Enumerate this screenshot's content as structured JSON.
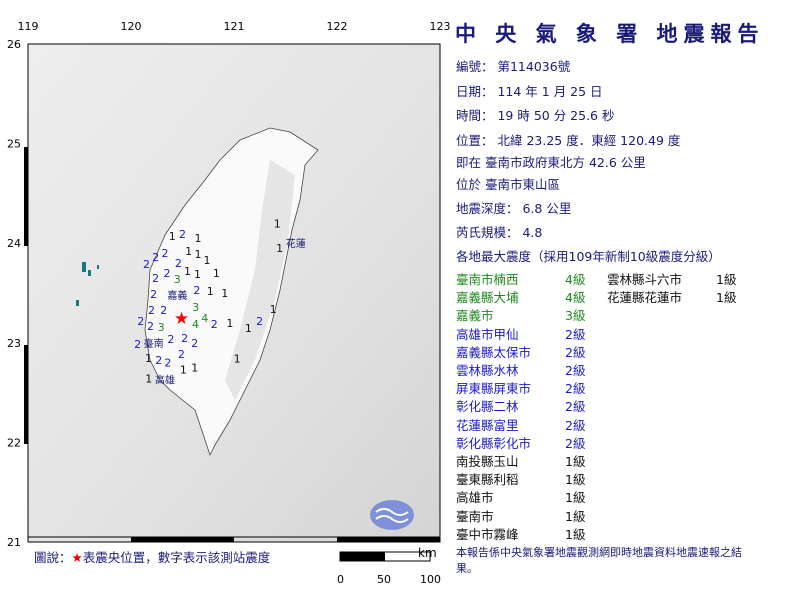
{
  "title": "中 央 氣 象 署 地震報告",
  "report": {
    "number": "編號： 第114036號",
    "date": "日期： 114 年 1 月 25 日",
    "time": "時間： 19 時 50 分 25.6 秒",
    "location": "位置： 北緯 23.25 度．東經 120.49 度",
    "relative": "即在 臺南市政府東北方 42.6 公里",
    "area": "位於 臺南市東山區",
    "depth": "地震深度： 6.8 公里",
    "magnitude": "芮氏規模： 4.8",
    "intensity_header": "各地最大震度（採用109年新制10級震度分級）"
  },
  "intensities_col1": [
    {
      "place": "臺南市楠西",
      "level": "4級",
      "color": "#1f8a1f"
    },
    {
      "place": "嘉義縣大埔",
      "level": "4級",
      "color": "#1f8a1f"
    },
    {
      "place": "嘉義市",
      "level": "3級",
      "color": "#1f8a1f"
    },
    {
      "place": "高雄市甲仙",
      "level": "2級",
      "color": "#1a1ad0"
    },
    {
      "place": "嘉義縣太保市",
      "level": "2級",
      "color": "#1a1ad0"
    },
    {
      "place": "雲林縣水林",
      "level": "2級",
      "color": "#1a1ad0"
    },
    {
      "place": "屏東縣屏東市",
      "level": "2級",
      "color": "#1a1ad0"
    },
    {
      "place": "彰化縣二林",
      "level": "2級",
      "color": "#1a1ad0"
    },
    {
      "place": "花蓮縣富里",
      "level": "2級",
      "color": "#1a1ad0"
    },
    {
      "place": "彰化縣彰化市",
      "level": "2級",
      "color": "#1a1ad0"
    },
    {
      "place": "南投縣玉山",
      "level": "1級",
      "color": "#111111"
    },
    {
      "place": "臺東縣利稻",
      "level": "1級",
      "color": "#111111"
    },
    {
      "place": "高雄市",
      "level": "1級",
      "color": "#111111"
    },
    {
      "place": "臺南市",
      "level": "1級",
      "color": "#111111"
    },
    {
      "place": "臺中市霧峰",
      "level": "1級",
      "color": "#111111"
    }
  ],
  "intensities_col2": [
    {
      "place": "雲林縣斗六市",
      "level": "1級",
      "color": "#111111"
    },
    {
      "place": "花蓮縣花蓮市",
      "level": "1級",
      "color": "#111111"
    }
  ],
  "note": "本報告係中央氣象署地震觀測網即時地震資料地震速報之結果。",
  "legend": {
    "prefix": "圖說：",
    "star": "★",
    "text": "表震央位置，數字表示該測站震度"
  },
  "scale": {
    "unit": "km",
    "labels": [
      "0",
      "50",
      "100"
    ]
  },
  "map": {
    "lon_ticks": [
      "119",
      "120",
      "121",
      "122",
      "123"
    ],
    "lat_ticks": [
      "26",
      "25",
      "24",
      "23",
      "22",
      "21"
    ],
    "epicenter": [
      120.49,
      23.25
    ],
    "colors": {
      "1": "#111111",
      "2": "#1a1ad0",
      "3": "#1f8a1f",
      "4": "#1f8a1f",
      "epicenter": "#ff0000"
    },
    "cities": [
      {
        "name": "嘉義",
        "lon": 120.45,
        "lat": 23.48
      },
      {
        "name": "臺南",
        "lon": 120.22,
        "lat": 23.0
      },
      {
        "name": "高雄",
        "lon": 120.33,
        "lat": 22.63
      },
      {
        "name": "花蓮",
        "lon": 121.6,
        "lat": 24.0
      }
    ],
    "stations": [
      [
        120.4,
        24.08,
        "1"
      ],
      [
        120.5,
        24.1,
        "2"
      ],
      [
        120.65,
        24.06,
        "1"
      ],
      [
        120.54,
        23.98,
        "1"
      ],
      [
        120.33,
        23.91,
        "2"
      ],
      [
        120.25,
        23.9,
        "2"
      ],
      [
        120.65,
        23.9,
        "1"
      ],
      [
        120.67,
        23.84,
        "1"
      ],
      [
        120.18,
        23.81,
        "2"
      ],
      [
        120.46,
        23.81,
        "2"
      ],
      [
        120.8,
        23.71,
        "1"
      ],
      [
        120.21,
        23.66,
        "2"
      ],
      [
        120.35,
        23.71,
        "2"
      ],
      [
        120.5,
        23.73,
        "1"
      ],
      [
        120.52,
        23.7,
        "1"
      ],
      [
        120.64,
        23.63,
        "2"
      ],
      [
        120.2,
        23.55,
        "2"
      ],
      [
        120.4,
        23.53,
        "3"
      ],
      [
        120.77,
        23.53,
        "1"
      ],
      [
        120.91,
        23.51,
        "1"
      ],
      [
        120.26,
        23.48,
        "2"
      ],
      [
        120.55,
        23.45,
        "3"
      ],
      [
        120.18,
        23.36,
        "2"
      ],
      [
        120.38,
        23.38,
        "3"
      ],
      [
        120.48,
        23.2,
        "4"
      ],
      [
        120.57,
        23.26,
        "4"
      ],
      [
        120.74,
        23.2,
        "2"
      ],
      [
        120.96,
        23.21,
        "1"
      ],
      [
        121.14,
        23.16,
        "1"
      ],
      [
        121.22,
        23.23,
        "2"
      ],
      [
        121.38,
        23.35,
        "1"
      ],
      [
        121.42,
        24.21,
        "1"
      ],
      [
        120.17,
        23.2,
        "2"
      ],
      [
        120.25,
        23.16,
        "2"
      ],
      [
        120.54,
        23.11,
        "2"
      ],
      [
        120.2,
        23.06,
        "2"
      ],
      [
        120.3,
        23.05,
        "2"
      ],
      [
        120.17,
        23.01,
        "1"
      ],
      [
        120.59,
        23.01,
        "2"
      ],
      [
        120.23,
        22.88,
        "2"
      ],
      [
        120.46,
        22.91,
        "2"
      ],
      [
        120.3,
        22.78,
        "2"
      ],
      [
        120.46,
        22.76,
        "1"
      ],
      [
        120.59,
        22.76,
        "1"
      ],
      [
        121.03,
        22.85,
        "1"
      ],
      [
        120.23,
        22.68,
        "1"
      ],
      [
        121.54,
        24.0,
        "1"
      ]
    ]
  }
}
